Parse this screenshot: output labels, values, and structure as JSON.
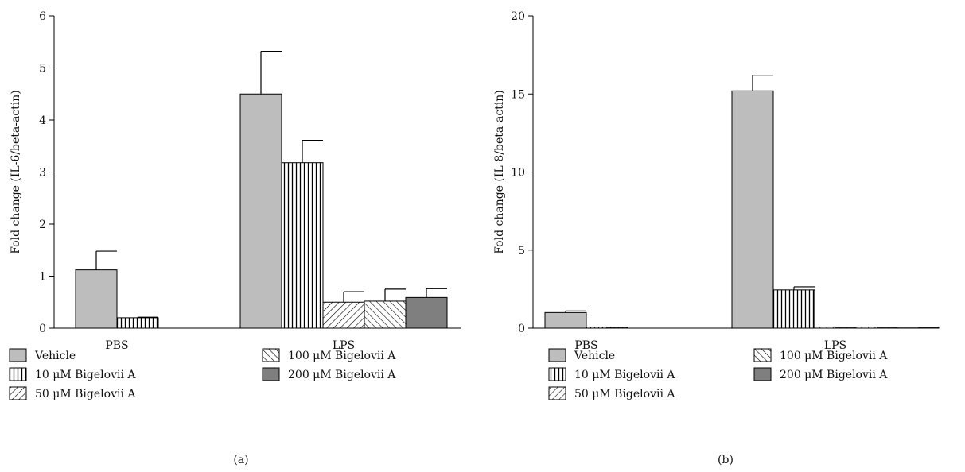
{
  "chart_data": [
    {
      "type": "bar",
      "panel_label": "(a)",
      "categories": [
        "PBS",
        "LPS"
      ],
      "ylabel": "Fold change (IL-6/beta-actin)",
      "ylim": [
        0,
        6
      ],
      "yticks": [
        "0",
        "1",
        "2",
        "3",
        "4",
        "5",
        "6"
      ],
      "series": [
        {
          "name": "Vehicle",
          "values": [
            1.12,
            4.5
          ],
          "errors": [
            0.36,
            0.82
          ],
          "fill": "#bdbdbd",
          "pattern": "solid"
        },
        {
          "name": "10 μM Bigelovii A",
          "values": [
            0.2,
            3.18
          ],
          "errors": [
            0.01,
            0.43
          ],
          "fill": "#ffffff",
          "pattern": "vertical"
        },
        {
          "name": "50 μM Bigelovii A",
          "values": [
            null,
            0.5
          ],
          "errors": [
            null,
            0.2
          ],
          "fill": "#ffffff",
          "pattern": "diag-down"
        },
        {
          "name": "100 μM Bigelovii A",
          "values": [
            null,
            0.52
          ],
          "errors": [
            null,
            0.23
          ],
          "fill": "#ffffff",
          "pattern": "diag-up"
        },
        {
          "name": "200 μM Bigelovii A",
          "values": [
            null,
            0.59
          ],
          "errors": [
            null,
            0.17
          ],
          "fill": "#7f7f7f",
          "pattern": "solid"
        }
      ],
      "legend_placement": "bottom"
    },
    {
      "type": "bar",
      "panel_label": "(b)",
      "categories": [
        "PBS",
        "LPS"
      ],
      "ylabel": "Fold change (IL-8/beta-actin)",
      "ylim": [
        0,
        20
      ],
      "yticks": [
        "0",
        "5",
        "10",
        "15",
        "20"
      ],
      "series": [
        {
          "name": "Vehicle",
          "values": [
            1.0,
            15.2
          ],
          "errors": [
            0.1,
            1.0
          ],
          "fill": "#bdbdbd",
          "pattern": "solid"
        },
        {
          "name": "10 μM Bigelovii A",
          "values": [
            0.05,
            2.45
          ],
          "errors": [
            0.01,
            0.2
          ],
          "fill": "#ffffff",
          "pattern": "vertical"
        },
        {
          "name": "50 μM Bigelovii A",
          "values": [
            null,
            0.05
          ],
          "errors": [
            null,
            0.01
          ],
          "fill": "#ffffff",
          "pattern": "diag-down"
        },
        {
          "name": "100 μM Bigelovii A",
          "values": [
            null,
            0.05
          ],
          "errors": [
            null,
            0.01
          ],
          "fill": "#ffffff",
          "pattern": "diag-up"
        },
        {
          "name": "200 μM Bigelovii A",
          "values": [
            null,
            0.05
          ],
          "errors": [
            null,
            0.01
          ],
          "fill": "#7f7f7f",
          "pattern": "solid"
        }
      ],
      "legend_placement": "bottom"
    }
  ]
}
